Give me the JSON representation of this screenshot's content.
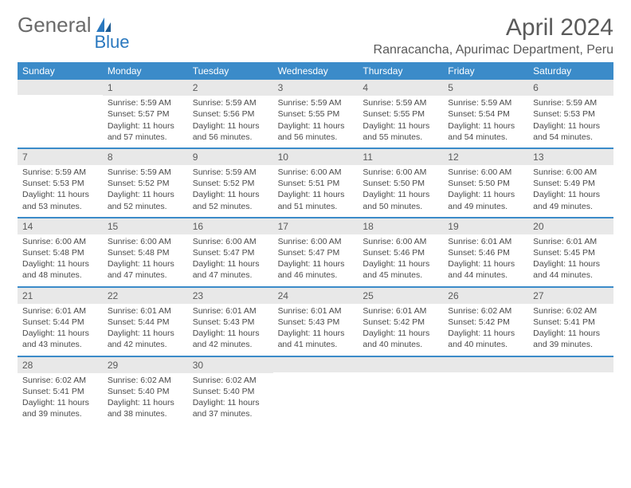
{
  "logo": {
    "text1": "General",
    "text2": "Blue"
  },
  "title": "April 2024",
  "location": "Ranracancha, Apurimac Department, Peru",
  "colors": {
    "header_bg": "#3b8bc9",
    "header_text": "#ffffff",
    "daynum_bg": "#e8e8e8",
    "border": "#3b8bc9",
    "body_text": "#4a4a4a",
    "title_text": "#5a5a5a",
    "logo_gray": "#6a6a6a",
    "logo_blue": "#2a78bf"
  },
  "day_names": [
    "Sunday",
    "Monday",
    "Tuesday",
    "Wednesday",
    "Thursday",
    "Friday",
    "Saturday"
  ],
  "weeks": [
    [
      {
        "empty": true
      },
      {
        "n": "1",
        "sr": "Sunrise: 5:59 AM",
        "ss": "Sunset: 5:57 PM",
        "d1": "Daylight: 11 hours",
        "d2": "and 57 minutes."
      },
      {
        "n": "2",
        "sr": "Sunrise: 5:59 AM",
        "ss": "Sunset: 5:56 PM",
        "d1": "Daylight: 11 hours",
        "d2": "and 56 minutes."
      },
      {
        "n": "3",
        "sr": "Sunrise: 5:59 AM",
        "ss": "Sunset: 5:55 PM",
        "d1": "Daylight: 11 hours",
        "d2": "and 56 minutes."
      },
      {
        "n": "4",
        "sr": "Sunrise: 5:59 AM",
        "ss": "Sunset: 5:55 PM",
        "d1": "Daylight: 11 hours",
        "d2": "and 55 minutes."
      },
      {
        "n": "5",
        "sr": "Sunrise: 5:59 AM",
        "ss": "Sunset: 5:54 PM",
        "d1": "Daylight: 11 hours",
        "d2": "and 54 minutes."
      },
      {
        "n": "6",
        "sr": "Sunrise: 5:59 AM",
        "ss": "Sunset: 5:53 PM",
        "d1": "Daylight: 11 hours",
        "d2": "and 54 minutes."
      }
    ],
    [
      {
        "n": "7",
        "sr": "Sunrise: 5:59 AM",
        "ss": "Sunset: 5:53 PM",
        "d1": "Daylight: 11 hours",
        "d2": "and 53 minutes."
      },
      {
        "n": "8",
        "sr": "Sunrise: 5:59 AM",
        "ss": "Sunset: 5:52 PM",
        "d1": "Daylight: 11 hours",
        "d2": "and 52 minutes."
      },
      {
        "n": "9",
        "sr": "Sunrise: 5:59 AM",
        "ss": "Sunset: 5:52 PM",
        "d1": "Daylight: 11 hours",
        "d2": "and 52 minutes."
      },
      {
        "n": "10",
        "sr": "Sunrise: 6:00 AM",
        "ss": "Sunset: 5:51 PM",
        "d1": "Daylight: 11 hours",
        "d2": "and 51 minutes."
      },
      {
        "n": "11",
        "sr": "Sunrise: 6:00 AM",
        "ss": "Sunset: 5:50 PM",
        "d1": "Daylight: 11 hours",
        "d2": "and 50 minutes."
      },
      {
        "n": "12",
        "sr": "Sunrise: 6:00 AM",
        "ss": "Sunset: 5:50 PM",
        "d1": "Daylight: 11 hours",
        "d2": "and 49 minutes."
      },
      {
        "n": "13",
        "sr": "Sunrise: 6:00 AM",
        "ss": "Sunset: 5:49 PM",
        "d1": "Daylight: 11 hours",
        "d2": "and 49 minutes."
      }
    ],
    [
      {
        "n": "14",
        "sr": "Sunrise: 6:00 AM",
        "ss": "Sunset: 5:48 PM",
        "d1": "Daylight: 11 hours",
        "d2": "and 48 minutes."
      },
      {
        "n": "15",
        "sr": "Sunrise: 6:00 AM",
        "ss": "Sunset: 5:48 PM",
        "d1": "Daylight: 11 hours",
        "d2": "and 47 minutes."
      },
      {
        "n": "16",
        "sr": "Sunrise: 6:00 AM",
        "ss": "Sunset: 5:47 PM",
        "d1": "Daylight: 11 hours",
        "d2": "and 47 minutes."
      },
      {
        "n": "17",
        "sr": "Sunrise: 6:00 AM",
        "ss": "Sunset: 5:47 PM",
        "d1": "Daylight: 11 hours",
        "d2": "and 46 minutes."
      },
      {
        "n": "18",
        "sr": "Sunrise: 6:00 AM",
        "ss": "Sunset: 5:46 PM",
        "d1": "Daylight: 11 hours",
        "d2": "and 45 minutes."
      },
      {
        "n": "19",
        "sr": "Sunrise: 6:01 AM",
        "ss": "Sunset: 5:46 PM",
        "d1": "Daylight: 11 hours",
        "d2": "and 44 minutes."
      },
      {
        "n": "20",
        "sr": "Sunrise: 6:01 AM",
        "ss": "Sunset: 5:45 PM",
        "d1": "Daylight: 11 hours",
        "d2": "and 44 minutes."
      }
    ],
    [
      {
        "n": "21",
        "sr": "Sunrise: 6:01 AM",
        "ss": "Sunset: 5:44 PM",
        "d1": "Daylight: 11 hours",
        "d2": "and 43 minutes."
      },
      {
        "n": "22",
        "sr": "Sunrise: 6:01 AM",
        "ss": "Sunset: 5:44 PM",
        "d1": "Daylight: 11 hours",
        "d2": "and 42 minutes."
      },
      {
        "n": "23",
        "sr": "Sunrise: 6:01 AM",
        "ss": "Sunset: 5:43 PM",
        "d1": "Daylight: 11 hours",
        "d2": "and 42 minutes."
      },
      {
        "n": "24",
        "sr": "Sunrise: 6:01 AM",
        "ss": "Sunset: 5:43 PM",
        "d1": "Daylight: 11 hours",
        "d2": "and 41 minutes."
      },
      {
        "n": "25",
        "sr": "Sunrise: 6:01 AM",
        "ss": "Sunset: 5:42 PM",
        "d1": "Daylight: 11 hours",
        "d2": "and 40 minutes."
      },
      {
        "n": "26",
        "sr": "Sunrise: 6:02 AM",
        "ss": "Sunset: 5:42 PM",
        "d1": "Daylight: 11 hours",
        "d2": "and 40 minutes."
      },
      {
        "n": "27",
        "sr": "Sunrise: 6:02 AM",
        "ss": "Sunset: 5:41 PM",
        "d1": "Daylight: 11 hours",
        "d2": "and 39 minutes."
      }
    ],
    [
      {
        "n": "28",
        "sr": "Sunrise: 6:02 AM",
        "ss": "Sunset: 5:41 PM",
        "d1": "Daylight: 11 hours",
        "d2": "and 39 minutes."
      },
      {
        "n": "29",
        "sr": "Sunrise: 6:02 AM",
        "ss": "Sunset: 5:40 PM",
        "d1": "Daylight: 11 hours",
        "d2": "and 38 minutes."
      },
      {
        "n": "30",
        "sr": "Sunrise: 6:02 AM",
        "ss": "Sunset: 5:40 PM",
        "d1": "Daylight: 11 hours",
        "d2": "and 37 minutes."
      },
      {
        "empty": true
      },
      {
        "empty": true
      },
      {
        "empty": true
      },
      {
        "empty": true
      }
    ]
  ]
}
